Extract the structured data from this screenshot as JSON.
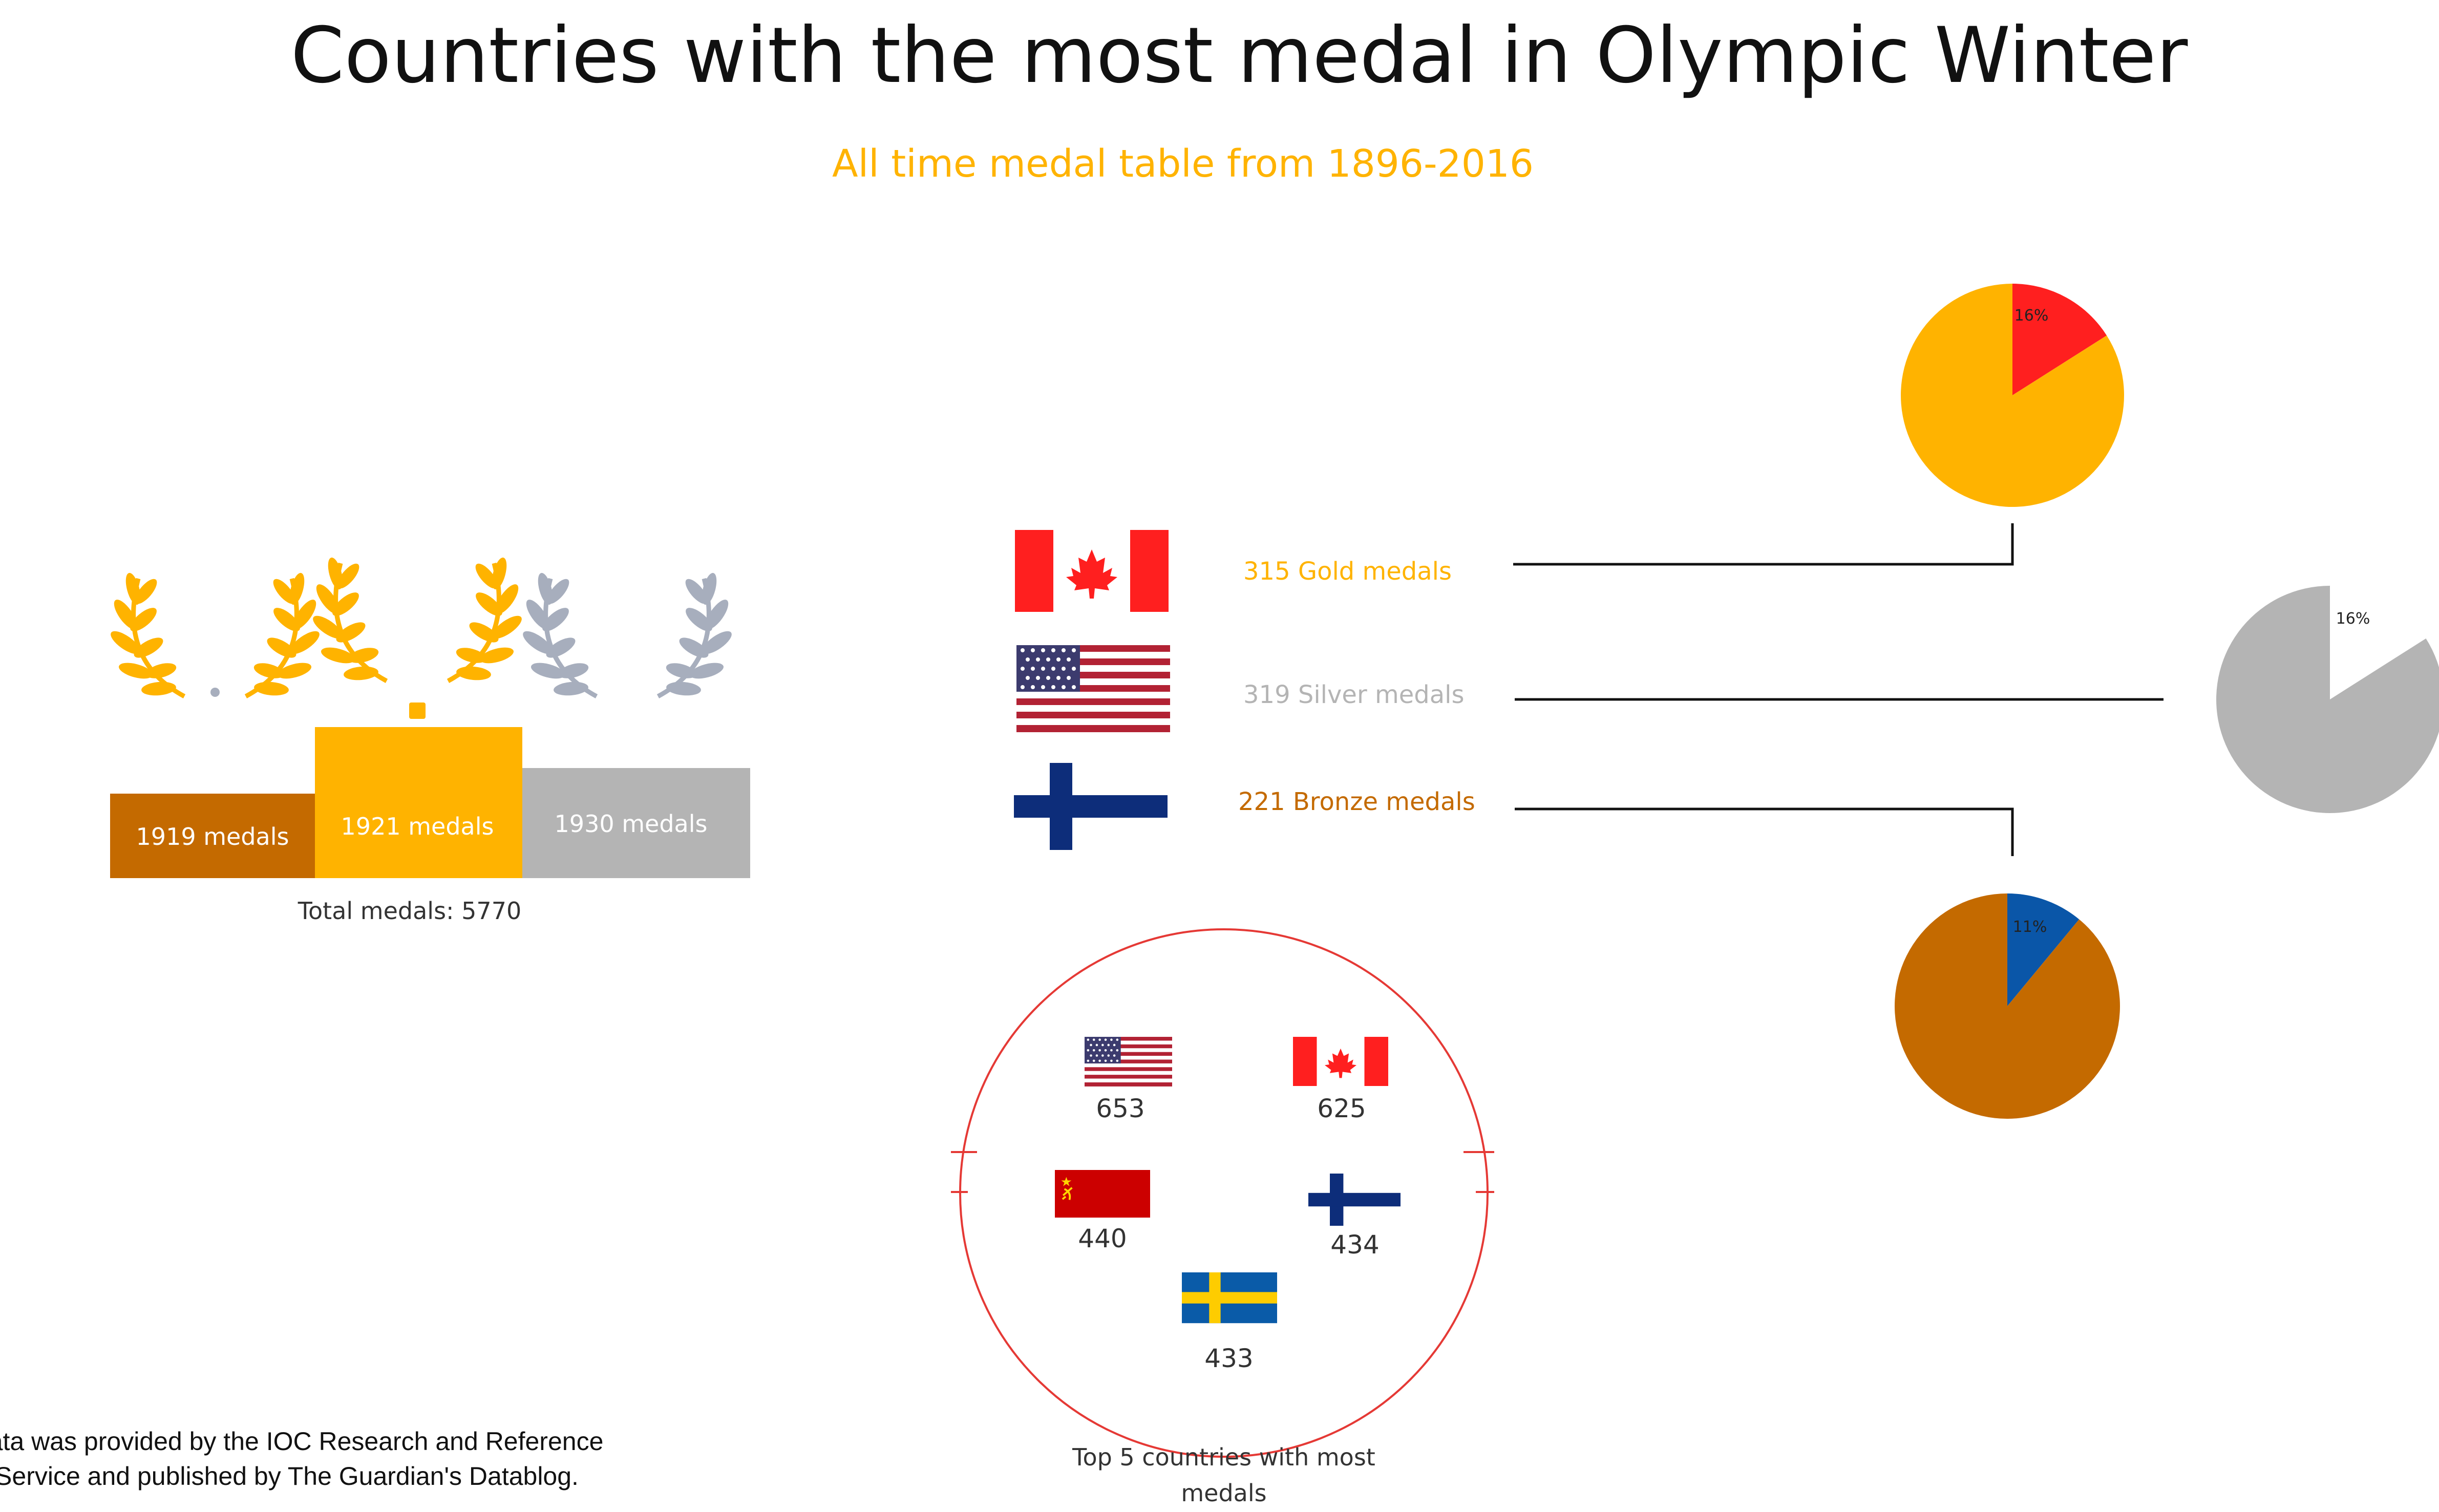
{
  "title": "Countries with the most medal in Olympic Winter",
  "subtitle": "All time medal table from 1896-2016",
  "colors": {
    "gold": "#FFB300",
    "silver": "#B4B4B4",
    "bronze": "#C46A00",
    "wreath_silver": "#A7AEBD",
    "red": "#FF1F1F",
    "blue": "#0A56A8",
    "circle": "#E53935"
  },
  "podium": {
    "total_label": "Total medals: 5770",
    "steps": [
      {
        "label": "1919 medals",
        "medal": "bronze",
        "value": 1919
      },
      {
        "label": "1921 medals",
        "medal": "gold",
        "value": 1921
      },
      {
        "label": "1930 medals",
        "medal": "silver",
        "value": 1930
      }
    ]
  },
  "leaders": [
    {
      "country": "Canada",
      "flag": "canada-flag",
      "text": "315 Gold medals",
      "medal": "gold",
      "pct": "16%"
    },
    {
      "country": "United States",
      "flag": "usa-flag",
      "text": "319 Silver medals",
      "medal": "silver",
      "pct": "16%"
    },
    {
      "country": "Finland",
      "flag": "finland-flag",
      "text": "221 Bronze medals",
      "medal": "bronze",
      "pct": "11%"
    }
  ],
  "top5": {
    "caption": "Top 5 countries with most medals",
    "countries": [
      {
        "country": "United States",
        "flag": "usa-flag",
        "count": "653"
      },
      {
        "country": "Canada",
        "flag": "canada-flag",
        "count": "625"
      },
      {
        "country": "Soviet Union",
        "flag": "ussr-flag",
        "count": "440"
      },
      {
        "country": "Finland",
        "flag": "finland-flag",
        "count": "434"
      },
      {
        "country": "Sweden",
        "flag": "sweden-flag",
        "count": "433"
      }
    ]
  },
  "source_lines": [
    "Data was provided by the IOC Research and Reference",
    "Service and published by The Guardian's Datablog."
  ],
  "chart_data": [
    {
      "type": "bar",
      "title": "",
      "categories": [
        "Bronze",
        "Gold",
        "Silver"
      ],
      "values": [
        1919,
        1921,
        1930
      ],
      "data_labels": [
        "1919 medals",
        "1921 medals",
        "1930 medals"
      ],
      "annotation": "Total medals: 5770"
    },
    {
      "type": "pie",
      "title": "",
      "slices": [
        {
          "label": "315 Gold medals",
          "value": 16,
          "display": "16%"
        },
        {
          "label": "",
          "value": 84
        }
      ]
    },
    {
      "type": "pie",
      "title": "",
      "slices": [
        {
          "label": "319 Silver medals",
          "value": 16,
          "display": "16%"
        },
        {
          "label": "",
          "value": 84
        }
      ]
    },
    {
      "type": "pie",
      "title": "",
      "slices": [
        {
          "label": "221 Bronze medals",
          "value": 11,
          "display": "11%"
        },
        {
          "label": "",
          "value": 89
        }
      ]
    },
    {
      "type": "table",
      "title": "Top 5 countries with most medals",
      "categories": [
        "United States",
        "Canada",
        "Soviet Union",
        "Finland",
        "Sweden"
      ],
      "values": [
        653,
        625,
        440,
        434,
        433
      ]
    }
  ]
}
